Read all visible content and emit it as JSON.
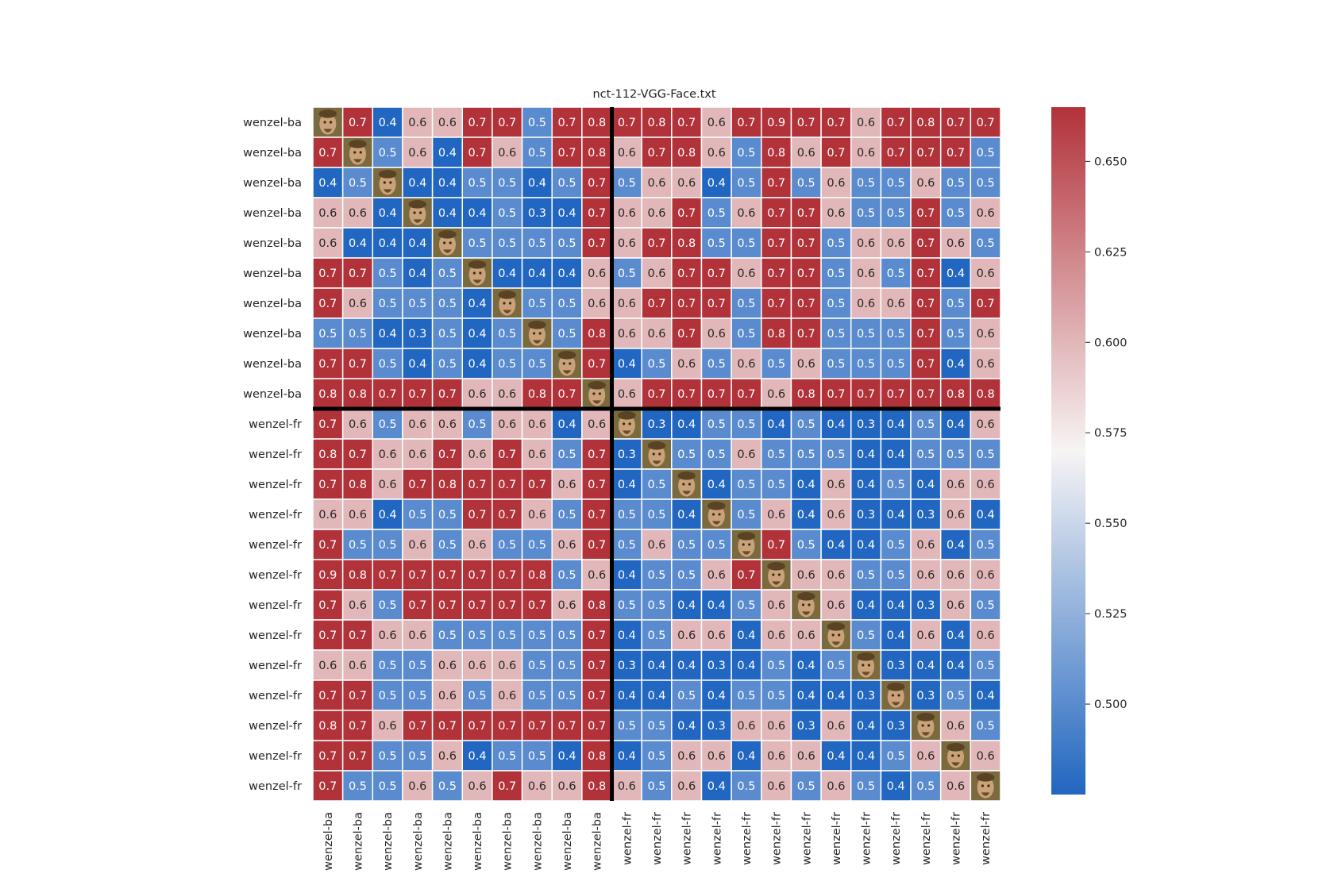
{
  "chart_data": {
    "type": "heatmap",
    "title": "nct-112-VGG-Face.txt",
    "row_labels": [
      "wenzel-ba",
      "wenzel-ba",
      "wenzel-ba",
      "wenzel-ba",
      "wenzel-ba",
      "wenzel-ba",
      "wenzel-ba",
      "wenzel-ba",
      "wenzel-ba",
      "wenzel-ba",
      "wenzel-fr",
      "wenzel-fr",
      "wenzel-fr",
      "wenzel-fr",
      "wenzel-fr",
      "wenzel-fr",
      "wenzel-fr",
      "wenzel-fr",
      "wenzel-fr",
      "wenzel-fr",
      "wenzel-fr",
      "wenzel-fr",
      "wenzel-fr"
    ],
    "col_labels": [
      "wenzel-ba",
      "wenzel-ba",
      "wenzel-ba",
      "wenzel-ba",
      "wenzel-ba",
      "wenzel-ba",
      "wenzel-ba",
      "wenzel-ba",
      "wenzel-ba",
      "wenzel-ba",
      "wenzel-fr",
      "wenzel-fr",
      "wenzel-fr",
      "wenzel-fr",
      "wenzel-fr",
      "wenzel-fr",
      "wenzel-fr",
      "wenzel-fr",
      "wenzel-fr",
      "wenzel-fr",
      "wenzel-fr",
      "wenzel-fr",
      "wenzel-fr"
    ],
    "values": [
      [
        null,
        0.7,
        0.4,
        0.6,
        0.6,
        0.7,
        0.7,
        0.5,
        0.7,
        0.8,
        0.7,
        0.8,
        0.7,
        0.6,
        0.7,
        0.9,
        0.7,
        0.7,
        0.6,
        0.7,
        0.8,
        0.7,
        0.7
      ],
      [
        0.7,
        null,
        0.5,
        0.6,
        0.4,
        0.7,
        0.6,
        0.5,
        0.7,
        0.8,
        0.6,
        0.7,
        0.8,
        0.6,
        0.5,
        0.8,
        0.6,
        0.7,
        0.6,
        0.7,
        0.7,
        0.7,
        0.5
      ],
      [
        0.4,
        0.5,
        null,
        0.4,
        0.4,
        0.5,
        0.5,
        0.4,
        0.5,
        0.7,
        0.5,
        0.6,
        0.6,
        0.4,
        0.5,
        0.7,
        0.5,
        0.6,
        0.5,
        0.5,
        0.6,
        0.5,
        0.5
      ],
      [
        0.6,
        0.6,
        0.4,
        null,
        0.4,
        0.4,
        0.5,
        0.3,
        0.4,
        0.7,
        0.6,
        0.6,
        0.7,
        0.5,
        0.6,
        0.7,
        0.7,
        0.6,
        0.5,
        0.5,
        0.7,
        0.5,
        0.6
      ],
      [
        0.6,
        0.4,
        0.4,
        0.4,
        null,
        0.5,
        0.5,
        0.5,
        0.5,
        0.7,
        0.6,
        0.7,
        0.8,
        0.5,
        0.5,
        0.7,
        0.7,
        0.5,
        0.6,
        0.6,
        0.7,
        0.6,
        0.5
      ],
      [
        0.7,
        0.7,
        0.5,
        0.4,
        0.5,
        null,
        0.4,
        0.4,
        0.4,
        0.6,
        0.5,
        0.6,
        0.7,
        0.7,
        0.6,
        0.7,
        0.7,
        0.5,
        0.6,
        0.5,
        0.7,
        0.4,
        0.6
      ],
      [
        0.7,
        0.6,
        0.5,
        0.5,
        0.5,
        0.4,
        null,
        0.5,
        0.5,
        0.6,
        0.6,
        0.7,
        0.7,
        0.7,
        0.5,
        0.7,
        0.7,
        0.5,
        0.6,
        0.6,
        0.7,
        0.5,
        0.7
      ],
      [
        0.5,
        0.5,
        0.4,
        0.3,
        0.5,
        0.4,
        0.5,
        null,
        0.5,
        0.8,
        0.6,
        0.6,
        0.7,
        0.6,
        0.5,
        0.8,
        0.7,
        0.5,
        0.5,
        0.5,
        0.7,
        0.5,
        0.6
      ],
      [
        0.7,
        0.7,
        0.5,
        0.4,
        0.5,
        0.4,
        0.5,
        0.5,
        null,
        0.7,
        0.4,
        0.5,
        0.6,
        0.5,
        0.6,
        0.5,
        0.6,
        0.5,
        0.5,
        0.5,
        0.7,
        0.4,
        0.6
      ],
      [
        0.8,
        0.8,
        0.7,
        0.7,
        0.7,
        0.6,
        0.6,
        0.8,
        0.7,
        null,
        0.6,
        0.7,
        0.7,
        0.7,
        0.7,
        0.6,
        0.8,
        0.7,
        0.7,
        0.7,
        0.7,
        0.8,
        0.8
      ],
      [
        0.7,
        0.6,
        0.5,
        0.6,
        0.6,
        0.5,
        0.6,
        0.6,
        0.4,
        0.6,
        null,
        0.3,
        0.4,
        0.5,
        0.5,
        0.4,
        0.5,
        0.4,
        0.3,
        0.4,
        0.5,
        0.4,
        0.6
      ],
      [
        0.8,
        0.7,
        0.6,
        0.6,
        0.7,
        0.6,
        0.7,
        0.6,
        0.5,
        0.7,
        0.3,
        null,
        0.5,
        0.5,
        0.6,
        0.5,
        0.5,
        0.5,
        0.4,
        0.4,
        0.5,
        0.5,
        0.5
      ],
      [
        0.7,
        0.8,
        0.6,
        0.7,
        0.8,
        0.7,
        0.7,
        0.7,
        0.6,
        0.7,
        0.4,
        0.5,
        null,
        0.4,
        0.5,
        0.5,
        0.4,
        0.6,
        0.4,
        0.5,
        0.4,
        0.6,
        0.6
      ],
      [
        0.6,
        0.6,
        0.4,
        0.5,
        0.5,
        0.7,
        0.7,
        0.6,
        0.5,
        0.7,
        0.5,
        0.5,
        0.4,
        null,
        0.5,
        0.6,
        0.4,
        0.6,
        0.3,
        0.4,
        0.3,
        0.6,
        0.4
      ],
      [
        0.7,
        0.5,
        0.5,
        0.6,
        0.5,
        0.6,
        0.5,
        0.5,
        0.6,
        0.7,
        0.5,
        0.6,
        0.5,
        0.5,
        null,
        0.7,
        0.5,
        0.4,
        0.4,
        0.5,
        0.6,
        0.4,
        0.5
      ],
      [
        0.9,
        0.8,
        0.7,
        0.7,
        0.7,
        0.7,
        0.7,
        0.8,
        0.5,
        0.6,
        0.4,
        0.5,
        0.5,
        0.6,
        0.7,
        null,
        0.6,
        0.6,
        0.5,
        0.5,
        0.6,
        0.6,
        0.6
      ],
      [
        0.7,
        0.6,
        0.5,
        0.7,
        0.7,
        0.7,
        0.7,
        0.7,
        0.6,
        0.8,
        0.5,
        0.5,
        0.4,
        0.4,
        0.5,
        0.6,
        null,
        0.6,
        0.4,
        0.4,
        0.3,
        0.6,
        0.5
      ],
      [
        0.7,
        0.7,
        0.6,
        0.6,
        0.5,
        0.5,
        0.5,
        0.5,
        0.5,
        0.7,
        0.4,
        0.5,
        0.6,
        0.6,
        0.4,
        0.6,
        0.6,
        null,
        0.5,
        0.4,
        0.6,
        0.4,
        0.6
      ],
      [
        0.6,
        0.6,
        0.5,
        0.5,
        0.6,
        0.6,
        0.6,
        0.5,
        0.5,
        0.7,
        0.3,
        0.4,
        0.4,
        0.3,
        0.4,
        0.5,
        0.4,
        0.5,
        null,
        0.3,
        0.4,
        0.4,
        0.5
      ],
      [
        0.7,
        0.7,
        0.5,
        0.5,
        0.6,
        0.5,
        0.6,
        0.5,
        0.5,
        0.7,
        0.4,
        0.4,
        0.5,
        0.4,
        0.5,
        0.5,
        0.4,
        0.4,
        0.3,
        null,
        0.3,
        0.5,
        0.4
      ],
      [
        0.8,
        0.7,
        0.6,
        0.7,
        0.7,
        0.7,
        0.7,
        0.7,
        0.7,
        0.7,
        0.5,
        0.5,
        0.4,
        0.3,
        0.6,
        0.6,
        0.3,
        0.6,
        0.4,
        0.3,
        null,
        0.6,
        0.5
      ],
      [
        0.7,
        0.7,
        0.5,
        0.5,
        0.6,
        0.4,
        0.5,
        0.5,
        0.4,
        0.8,
        0.4,
        0.5,
        0.6,
        0.6,
        0.4,
        0.6,
        0.6,
        0.4,
        0.4,
        0.5,
        0.6,
        null,
        0.6
      ],
      [
        0.7,
        0.5,
        0.5,
        0.6,
        0.5,
        0.6,
        0.7,
        0.6,
        0.6,
        0.8,
        0.6,
        0.5,
        0.6,
        0.4,
        0.5,
        0.6,
        0.5,
        0.6,
        0.5,
        0.4,
        0.5,
        0.6,
        null
      ]
    ],
    "diagonal": "face thumbnail",
    "group_separator_after_index": 10,
    "colormap": {
      "name": "vlag",
      "low_color": "#2166c0",
      "mid_color": "#f7f4f4",
      "high_color": "#b2323a",
      "vmin": 0.475,
      "vmax": 0.665
    },
    "colorbar_ticks": [
      "0.500",
      "0.525",
      "0.550",
      "0.575",
      "0.600",
      "0.625",
      "0.650"
    ],
    "colorbar_tick_values": [
      0.5,
      0.525,
      0.55,
      0.575,
      0.6,
      0.625,
      0.65
    ]
  }
}
